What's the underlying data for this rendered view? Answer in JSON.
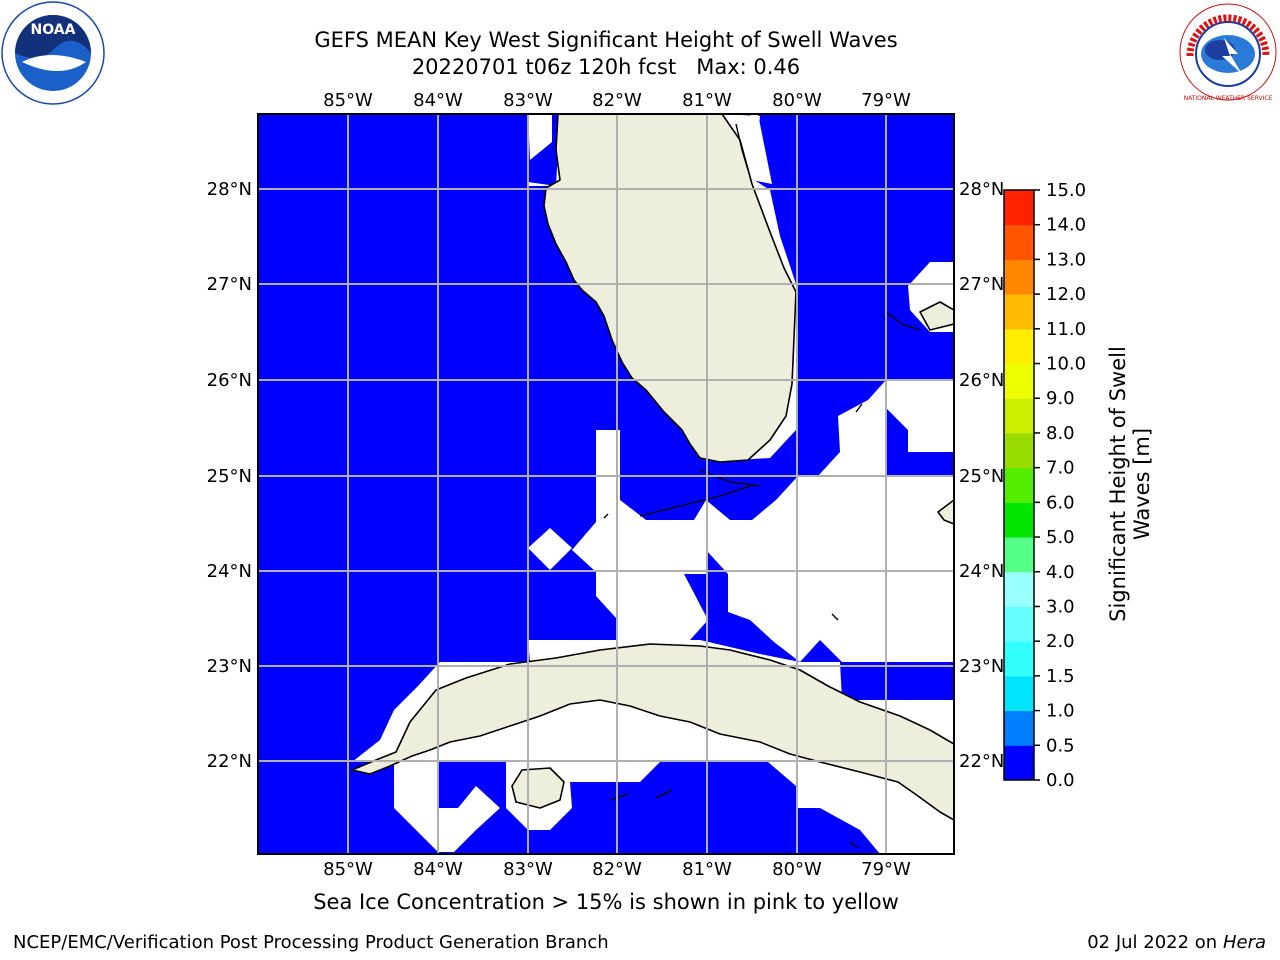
{
  "header": {
    "title_line1": "GEFS MEAN Key West Significant Height of Swell Waves",
    "title_line2": "20220701 t06z 120h fcst   Max: 0.46"
  },
  "logos": {
    "left": {
      "icon": "noaa-logo-icon",
      "text": "NOAA"
    },
    "right": {
      "icon": "nws-logo-icon",
      "text": "NATIONAL WEATHER SERVICE"
    }
  },
  "map": {
    "lon_labels": [
      "85°W",
      "84°W",
      "83°W",
      "82°W",
      "81°W",
      "80°W",
      "79°W"
    ],
    "lat_labels": [
      "28°N",
      "27°N",
      "26°N",
      "25°N",
      "24°N",
      "23°N",
      "22°N"
    ],
    "lon_range": [
      -86.0,
      -78.25
    ],
    "lat_range": [
      21.1,
      28.75
    ],
    "water_color": "#0000ff",
    "land_color": "#eeeedd",
    "gridlines": true
  },
  "colorbar": {
    "label_line1": "Significant Height of Swell",
    "label_line2": "Waves [m]",
    "tick_labels": [
      "0.0",
      "0.5",
      "1.0",
      "1.5",
      "2.0",
      "3.0",
      "4.0",
      "5.0",
      "6.0",
      "7.0",
      "8.0",
      "9.0",
      "10.0",
      "11.0",
      "12.0",
      "13.0",
      "14.0",
      "15.0"
    ],
    "colors": [
      "#0000ff",
      "#0080ff",
      "#00e5ff",
      "#33ffff",
      "#66ffff",
      "#99ffff",
      "#55ff88",
      "#00e600",
      "#55ee00",
      "#99dd00",
      "#ccee00",
      "#eeff00",
      "#ffee00",
      "#ffbb00",
      "#ff8800",
      "#ff5500",
      "#ff2200"
    ]
  },
  "note": "Sea Ice Concentration > 15% is shown in pink to yellow",
  "footer": {
    "left": "NCEP/EMC/Verification Post Processing Product Generation Branch",
    "right_prefix": "02 Jul 2022 on ",
    "right_host": "Hera"
  }
}
